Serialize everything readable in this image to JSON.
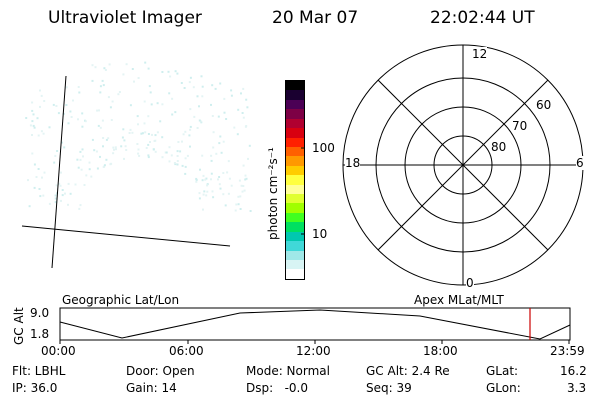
{
  "header": {
    "instrument": "Ultraviolet Imager",
    "date": "20 Mar 07",
    "time": "22:02:44 UT"
  },
  "colorbar": {
    "unit_label": "photon cm⁻²s⁻¹",
    "tick_labels": [
      "100",
      "10"
    ],
    "colors": [
      "#000000",
      "#1a0030",
      "#4b0055",
      "#7d0045",
      "#b00030",
      "#d80010",
      "#ff2000",
      "#ff6000",
      "#ff9900",
      "#ffcc00",
      "#ffff40",
      "#ffff99",
      "#e0ff30",
      "#a0ff00",
      "#40ff20",
      "#00e060",
      "#00c8b0",
      "#40d8d8",
      "#a0e8e8",
      "#d8f4f4",
      "#ffffff"
    ]
  },
  "polar_plot": {
    "clock_labels": {
      "top": "12",
      "left": "18",
      "right": "6",
      "bottom": "0"
    },
    "lat_labels": [
      "60",
      "70",
      "80"
    ]
  },
  "altitude_plot": {
    "axis_label": "GC Alt",
    "y_ticks": [
      "9.0",
      "1.8"
    ],
    "left_title": "Geographic Lat/Lon",
    "right_title": "Apex MLat/MLT",
    "x_ticks": [
      "00:00",
      "06:00",
      "12:00",
      "18:00",
      "23:59"
    ],
    "current_marker_color": "#cc0000"
  },
  "status": {
    "flt": "Flt: LBHL",
    "ip": "IP: 36.0",
    "door": "Door: Open",
    "gain": "Gain: 14",
    "mode": "Mode: Normal",
    "dsp": "Dsp:   -0.0",
    "gc_alt": "GC Alt: 2.4 Re",
    "seq": "Seq: 39",
    "glat_label": "GLat:",
    "glat_value": "16.2",
    "glon_label": "GLon:",
    "glon_value": "3.3"
  }
}
